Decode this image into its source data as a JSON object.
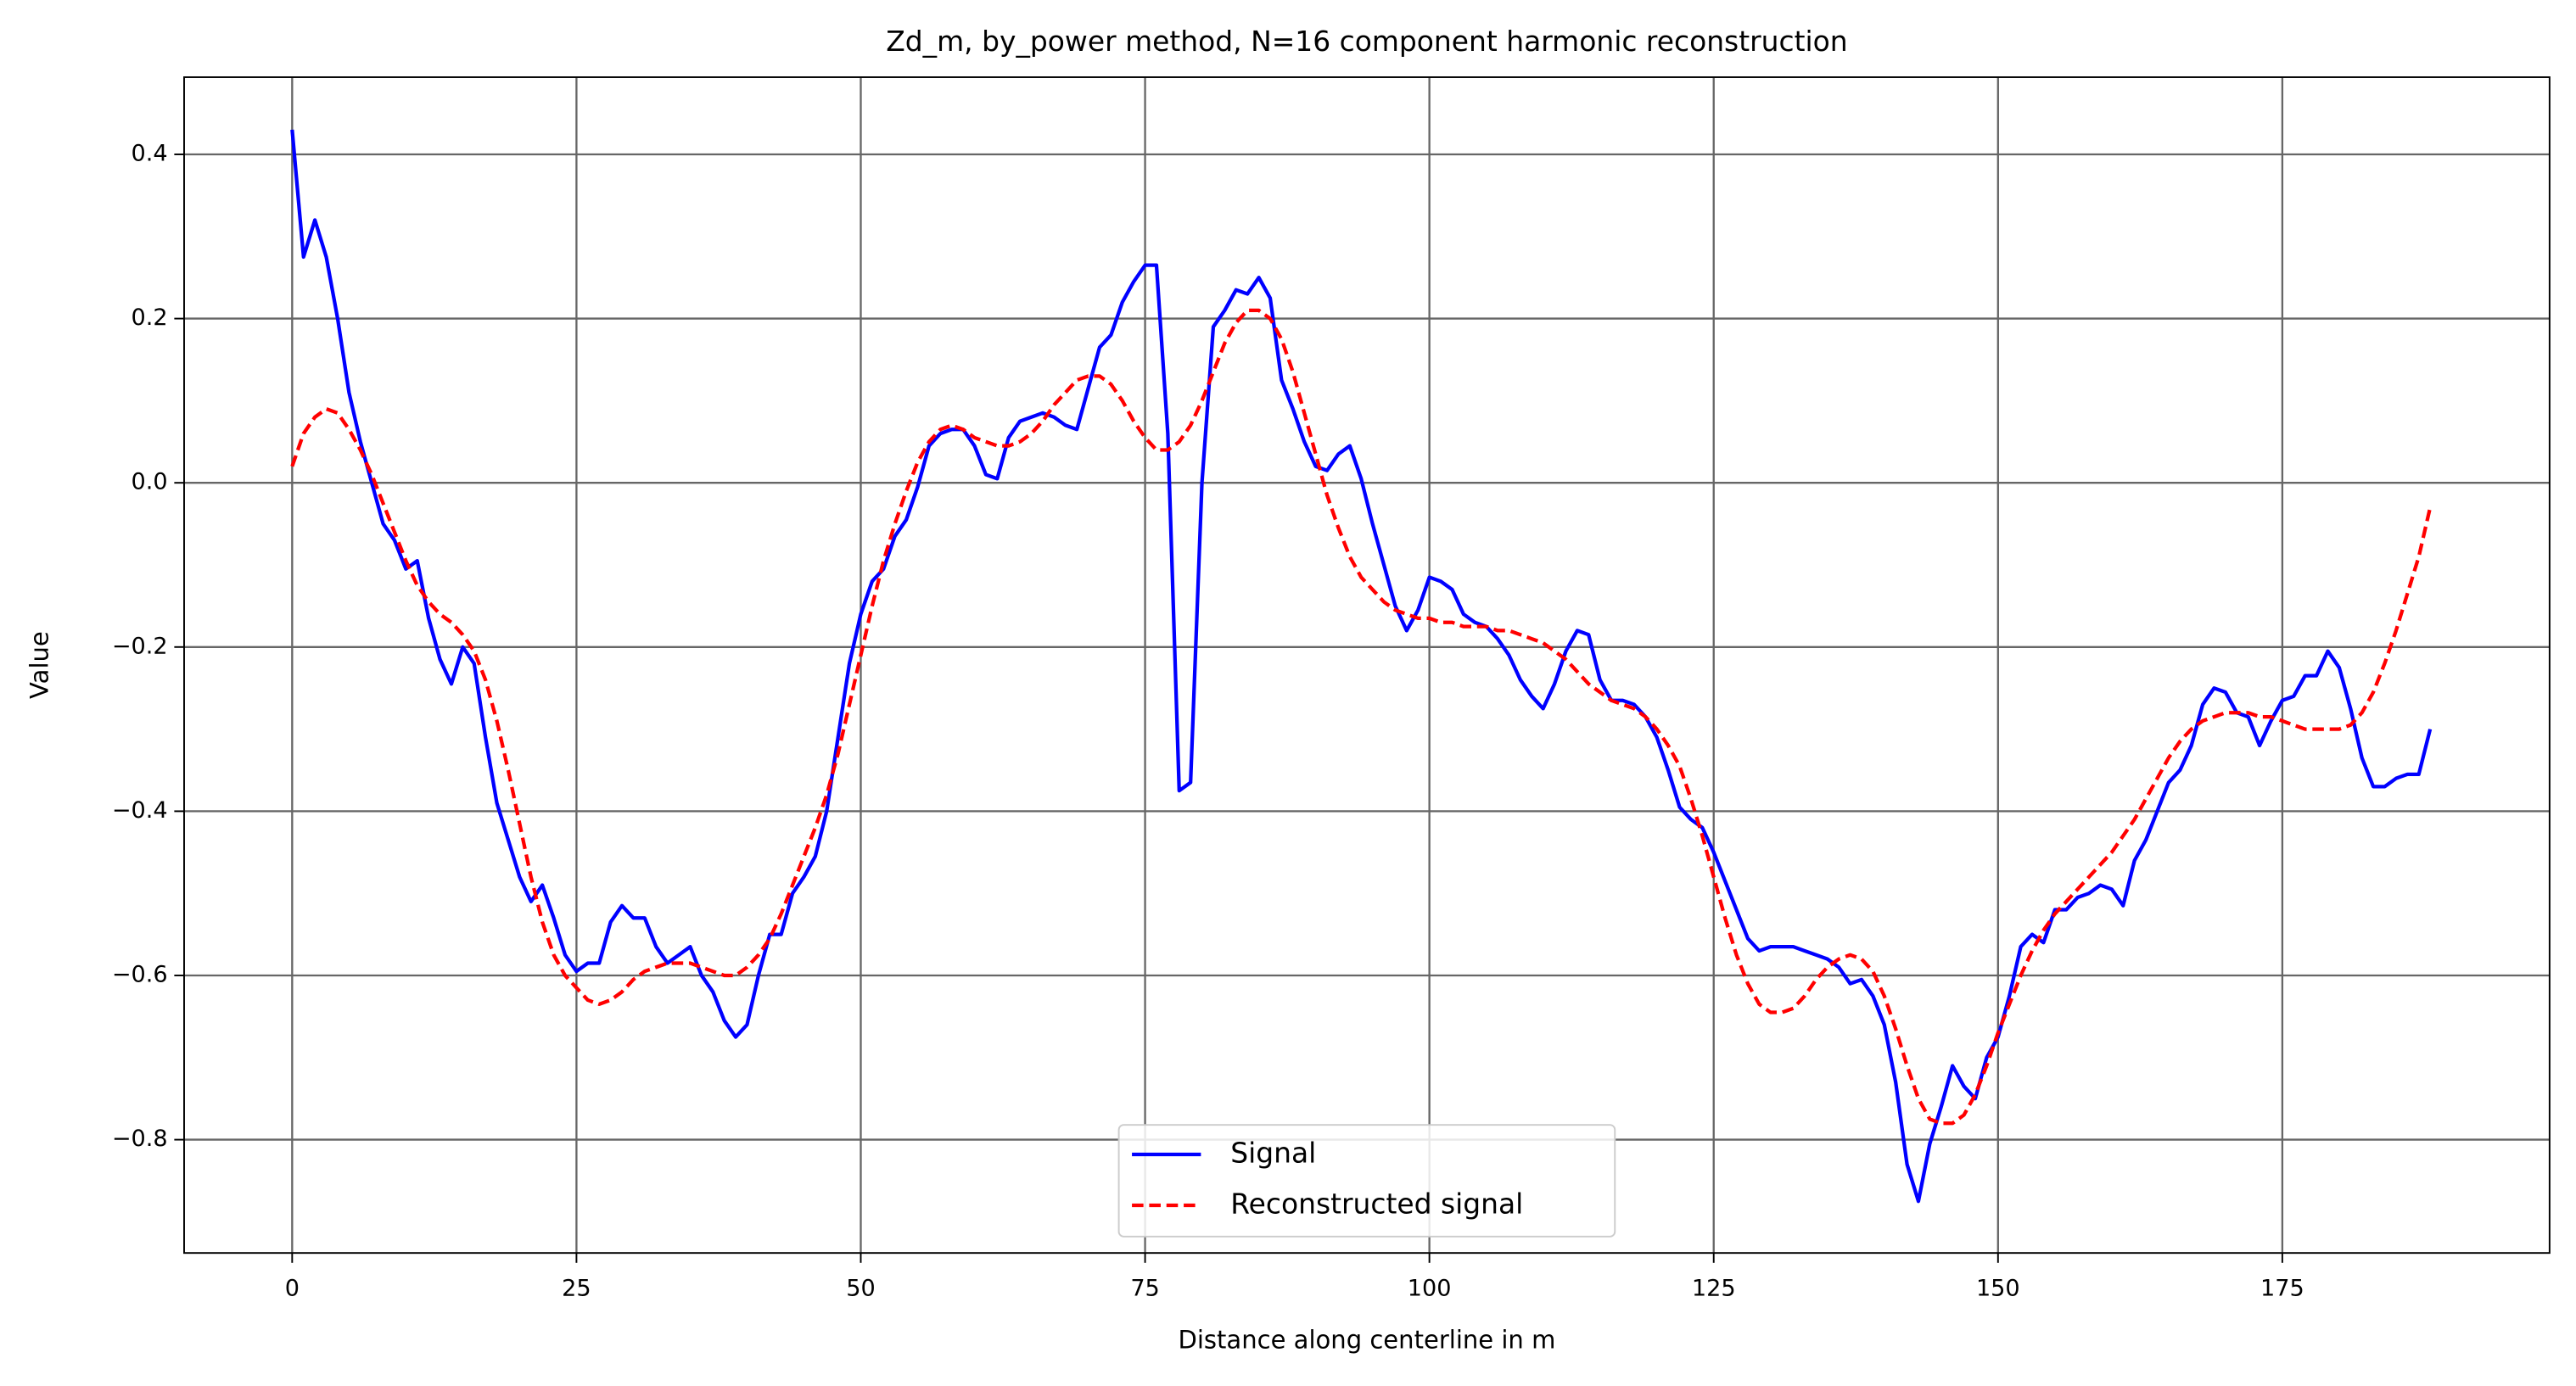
{
  "chart_data": {
    "type": "line",
    "title": "Zd_m, by_power method, N=16 component harmonic reconstruction",
    "xlabel": "Distance along centerline in m",
    "ylabel": "Value",
    "x": [
      0,
      1,
      2,
      3,
      4,
      5,
      6,
      7,
      8,
      9,
      10,
      11,
      12,
      13,
      14,
      15,
      16,
      17,
      18,
      19,
      20,
      21,
      22,
      23,
      24,
      25,
      26,
      27,
      28,
      29,
      30,
      31,
      32,
      33,
      34,
      35,
      36,
      37,
      38,
      39,
      40,
      41,
      42,
      43,
      44,
      45,
      46,
      47,
      48,
      49,
      50,
      51,
      52,
      53,
      54,
      55,
      56,
      57,
      58,
      59,
      60,
      61,
      62,
      63,
      64,
      65,
      66,
      67,
      68,
      69,
      70,
      71,
      72,
      73,
      74,
      75,
      76,
      77,
      78,
      79,
      80,
      81,
      82,
      83,
      84,
      85,
      86,
      87,
      88,
      89,
      90,
      91,
      92,
      93,
      94,
      95,
      96,
      97,
      98,
      99,
      100,
      101,
      102,
      103,
      104,
      105,
      106,
      107,
      108,
      109,
      110,
      111,
      112,
      113,
      114,
      115,
      116,
      117,
      118,
      119,
      120,
      121,
      122,
      123,
      124,
      125,
      126,
      127,
      128,
      129,
      130,
      131,
      132,
      133,
      134,
      135,
      136,
      137,
      138,
      139,
      140,
      141,
      142,
      143,
      144,
      145,
      146,
      147,
      148,
      149,
      150,
      151,
      152,
      153,
      154,
      155,
      156,
      157,
      158,
      159,
      160,
      161,
      162,
      163,
      164,
      165,
      166,
      167,
      168,
      169,
      170,
      171,
      172,
      173,
      174,
      175,
      176,
      177,
      178,
      179,
      180,
      181,
      182,
      183,
      184,
      185,
      186,
      187,
      188
    ],
    "series": [
      {
        "name": "Signal",
        "color": "#0000ff",
        "dash": false,
        "values": [
          0.43,
          0.275,
          0.32,
          0.275,
          0.2,
          0.11,
          0.05,
          0.0,
          -0.05,
          -0.07,
          -0.105,
          -0.095,
          -0.165,
          -0.215,
          -0.245,
          -0.2,
          -0.22,
          -0.31,
          -0.39,
          -0.435,
          -0.48,
          -0.51,
          -0.49,
          -0.53,
          -0.575,
          -0.595,
          -0.585,
          -0.585,
          -0.535,
          -0.515,
          -0.53,
          -0.53,
          -0.565,
          -0.585,
          -0.575,
          -0.565,
          -0.6,
          -0.62,
          -0.655,
          -0.675,
          -0.66,
          -0.6,
          -0.55,
          -0.55,
          -0.5,
          -0.48,
          -0.455,
          -0.4,
          -0.31,
          -0.22,
          -0.16,
          -0.12,
          -0.105,
          -0.065,
          -0.045,
          -0.005,
          0.045,
          0.06,
          0.065,
          0.065,
          0.045,
          0.01,
          0.005,
          0.055,
          0.075,
          0.08,
          0.085,
          0.08,
          0.07,
          0.065,
          0.115,
          0.165,
          0.18,
          0.22,
          0.245,
          0.265,
          0.265,
          0.06,
          -0.375,
          -0.365,
          0.0,
          0.19,
          0.21,
          0.235,
          0.23,
          0.25,
          0.225,
          0.125,
          0.09,
          0.05,
          0.02,
          0.015,
          0.035,
          0.045,
          0.005,
          -0.05,
          -0.1,
          -0.15,
          -0.18,
          -0.155,
          -0.115,
          -0.12,
          -0.13,
          -0.16,
          -0.17,
          -0.175,
          -0.19,
          -0.21,
          -0.24,
          -0.26,
          -0.275,
          -0.245,
          -0.205,
          -0.18,
          -0.185,
          -0.24,
          -0.265,
          -0.265,
          -0.27,
          -0.285,
          -0.31,
          -0.35,
          -0.395,
          -0.41,
          -0.42,
          -0.45,
          -0.485,
          -0.52,
          -0.555,
          -0.57,
          -0.565,
          -0.565,
          -0.565,
          -0.57,
          -0.575,
          -0.58,
          -0.59,
          -0.61,
          -0.605,
          -0.625,
          -0.66,
          -0.73,
          -0.83,
          -0.875,
          -0.805,
          -0.76,
          -0.71,
          -0.735,
          -0.75,
          -0.7,
          -0.675,
          -0.625,
          -0.565,
          -0.55,
          -0.56,
          -0.52,
          -0.52,
          -0.505,
          -0.5,
          -0.49,
          -0.495,
          -0.515,
          -0.46,
          -0.435,
          -0.4,
          -0.365,
          -0.35,
          -0.32,
          -0.27,
          -0.25,
          -0.255,
          -0.28,
          -0.285,
          -0.32,
          -0.29,
          -0.265,
          -0.26,
          -0.235,
          -0.235,
          -0.205,
          -0.225,
          -0.275,
          -0.335,
          -0.37,
          -0.37,
          -0.36,
          -0.355,
          -0.355,
          -0.3
        ]
      },
      {
        "name": "Reconstructed signal",
        "color": "#ff0000",
        "dash": true,
        "values": [
          0.02,
          0.06,
          0.08,
          0.09,
          0.085,
          0.065,
          0.04,
          0.01,
          -0.025,
          -0.06,
          -0.095,
          -0.125,
          -0.145,
          -0.16,
          -0.17,
          -0.185,
          -0.205,
          -0.24,
          -0.29,
          -0.35,
          -0.415,
          -0.48,
          -0.535,
          -0.575,
          -0.6,
          -0.615,
          -0.63,
          -0.635,
          -0.63,
          -0.62,
          -0.605,
          -0.595,
          -0.59,
          -0.585,
          -0.585,
          -0.585,
          -0.59,
          -0.595,
          -0.6,
          -0.6,
          -0.59,
          -0.575,
          -0.555,
          -0.525,
          -0.49,
          -0.455,
          -0.42,
          -0.38,
          -0.33,
          -0.27,
          -0.21,
          -0.15,
          -0.095,
          -0.05,
          -0.01,
          0.025,
          0.05,
          0.065,
          0.07,
          0.065,
          0.055,
          0.05,
          0.045,
          0.045,
          0.05,
          0.06,
          0.075,
          0.095,
          0.11,
          0.125,
          0.13,
          0.13,
          0.12,
          0.1,
          0.075,
          0.055,
          0.04,
          0.04,
          0.05,
          0.07,
          0.1,
          0.135,
          0.17,
          0.195,
          0.21,
          0.21,
          0.2,
          0.175,
          0.135,
          0.085,
          0.035,
          -0.015,
          -0.055,
          -0.09,
          -0.115,
          -0.13,
          -0.145,
          -0.155,
          -0.16,
          -0.165,
          -0.165,
          -0.17,
          -0.17,
          -0.175,
          -0.175,
          -0.175,
          -0.18,
          -0.18,
          -0.185,
          -0.19,
          -0.195,
          -0.205,
          -0.215,
          -0.23,
          -0.245,
          -0.255,
          -0.265,
          -0.27,
          -0.275,
          -0.285,
          -0.3,
          -0.32,
          -0.345,
          -0.385,
          -0.43,
          -0.48,
          -0.53,
          -0.575,
          -0.61,
          -0.635,
          -0.645,
          -0.645,
          -0.64,
          -0.625,
          -0.605,
          -0.59,
          -0.58,
          -0.575,
          -0.58,
          -0.595,
          -0.625,
          -0.665,
          -0.71,
          -0.75,
          -0.775,
          -0.78,
          -0.78,
          -0.77,
          -0.745,
          -0.71,
          -0.67,
          -0.635,
          -0.6,
          -0.57,
          -0.545,
          -0.525,
          -0.51,
          -0.495,
          -0.48,
          -0.465,
          -0.45,
          -0.43,
          -0.41,
          -0.385,
          -0.36,
          -0.335,
          -0.315,
          -0.3,
          -0.29,
          -0.285,
          -0.28,
          -0.28,
          -0.28,
          -0.285,
          -0.285,
          -0.29,
          -0.295,
          -0.3,
          -0.3,
          -0.3,
          -0.3,
          -0.295,
          -0.28,
          -0.255,
          -0.22,
          -0.18,
          -0.135,
          -0.09,
          -0.03
        ]
      }
    ],
    "xlim": [
      -9.5,
      198.5
    ],
    "ylim": [
      -0.938,
      0.494
    ],
    "xticks": [
      0,
      25,
      50,
      75,
      100,
      125,
      150,
      175
    ],
    "yticks": [
      {
        "value": -0.8,
        "label": "−0.8"
      },
      {
        "value": -0.6,
        "label": "−0.6"
      },
      {
        "value": -0.4,
        "label": "−0.4"
      },
      {
        "value": -0.2,
        "label": "−0.2"
      },
      {
        "value": 0.0,
        "label": "0.0"
      },
      0.2,
      0.4
    ],
    "grid": true,
    "legend": "lower center"
  }
}
